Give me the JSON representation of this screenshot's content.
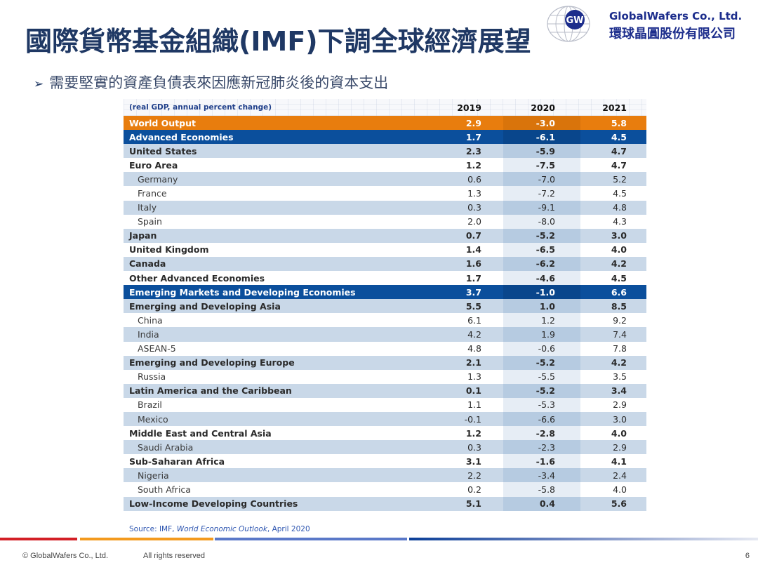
{
  "slide": {
    "title": "國際貨幣基金組織(IMF)下調全球經濟展望",
    "bullet": "需要堅實的資產負債表來因應新冠肺炎後的資本支出",
    "logo": {
      "mark": "GW",
      "company_en": "GlobalWafers Co., Ltd.",
      "company_zh": "環球晶圓股份有限公司",
      "brand_color": "#1c2d8c"
    }
  },
  "table": {
    "caption": "(real GDP, annual percent change)",
    "columns": [
      "2019",
      "2020",
      "2021"
    ],
    "rows": [
      {
        "name": "World Output",
        "values": [
          "2.9",
          "-3.0",
          "5.8"
        ],
        "style": "orange"
      },
      {
        "name": "Advanced Economies",
        "values": [
          "1.7",
          "-6.1",
          "4.5"
        ],
        "style": "blue"
      },
      {
        "name": "United States",
        "values": [
          "2.3",
          "-5.9",
          "4.7"
        ],
        "style": "bold"
      },
      {
        "name": "Euro Area",
        "values": [
          "1.2",
          "-7.5",
          "4.7"
        ],
        "style": "bold"
      },
      {
        "name": "Germany",
        "values": [
          "0.6",
          "-7.0",
          "5.2"
        ],
        "style": "sub"
      },
      {
        "name": "France",
        "values": [
          "1.3",
          "-7.2",
          "4.5"
        ],
        "style": "sub"
      },
      {
        "name": "Italy",
        "values": [
          "0.3",
          "-9.1",
          "4.8"
        ],
        "style": "sub"
      },
      {
        "name": "Spain",
        "values": [
          "2.0",
          "-8.0",
          "4.3"
        ],
        "style": "sub"
      },
      {
        "name": "Japan",
        "values": [
          "0.7",
          "-5.2",
          "3.0"
        ],
        "style": "bold"
      },
      {
        "name": "United Kingdom",
        "values": [
          "1.4",
          "-6.5",
          "4.0"
        ],
        "style": "bold"
      },
      {
        "name": "Canada",
        "values": [
          "1.6",
          "-6.2",
          "4.2"
        ],
        "style": "bold"
      },
      {
        "name": "Other Advanced Economies",
        "values": [
          "1.7",
          "-4.6",
          "4.5"
        ],
        "style": "bold"
      },
      {
        "name": "Emerging Markets and Developing Economies",
        "values": [
          "3.7",
          "-1.0",
          "6.6"
        ],
        "style": "blue"
      },
      {
        "name": "Emerging and Developing Asia",
        "values": [
          "5.5",
          "1.0",
          "8.5"
        ],
        "style": "bold"
      },
      {
        "name": "China",
        "values": [
          "6.1",
          "1.2",
          "9.2"
        ],
        "style": "sub"
      },
      {
        "name": "India",
        "values": [
          "4.2",
          "1.9",
          "7.4"
        ],
        "style": "sub"
      },
      {
        "name": "ASEAN-5",
        "values": [
          "4.8",
          "-0.6",
          "7.8"
        ],
        "style": "sub"
      },
      {
        "name": "Emerging and Developing Europe",
        "values": [
          "2.1",
          "-5.2",
          "4.2"
        ],
        "style": "bold"
      },
      {
        "name": "Russia",
        "values": [
          "1.3",
          "-5.5",
          "3.5"
        ],
        "style": "sub"
      },
      {
        "name": "Latin America and the Caribbean",
        "values": [
          "0.1",
          "-5.2",
          "3.4"
        ],
        "style": "bold"
      },
      {
        "name": "Brazil",
        "values": [
          "1.1",
          "-5.3",
          "2.9"
        ],
        "style": "sub"
      },
      {
        "name": "Mexico",
        "values": [
          "-0.1",
          "-6.6",
          "3.0"
        ],
        "style": "sub"
      },
      {
        "name": "Middle East and Central Asia",
        "values": [
          "1.2",
          "-2.8",
          "4.0"
        ],
        "style": "bold"
      },
      {
        "name": "Saudi Arabia",
        "values": [
          "0.3",
          "-2.3",
          "2.9"
        ],
        "style": "sub"
      },
      {
        "name": "Sub-Saharan Africa",
        "values": [
          "3.1",
          "-1.6",
          "4.1"
        ],
        "style": "bold"
      },
      {
        "name": "Nigeria",
        "values": [
          "2.2",
          "-3.4",
          "2.4"
        ],
        "style": "sub"
      },
      {
        "name": "South Africa",
        "values": [
          "0.2",
          "-5.8",
          "4.0"
        ],
        "style": "sub"
      },
      {
        "name": "Low-Income Developing Countries",
        "values": [
          "5.1",
          "0.4",
          "5.6"
        ],
        "style": "bold"
      }
    ],
    "source_prefix": "Source: IMF, ",
    "source_title": "World Economic Outlook",
    "source_suffix": ", April 2020",
    "colors": {
      "orange": "#e87d0e",
      "blue": "#0b4f9c",
      "alt": "#c9d8e8"
    }
  },
  "footer": {
    "copyright": "© GlobalWafers Co., Ltd.",
    "rights": "All rights reserved",
    "page": "6"
  }
}
